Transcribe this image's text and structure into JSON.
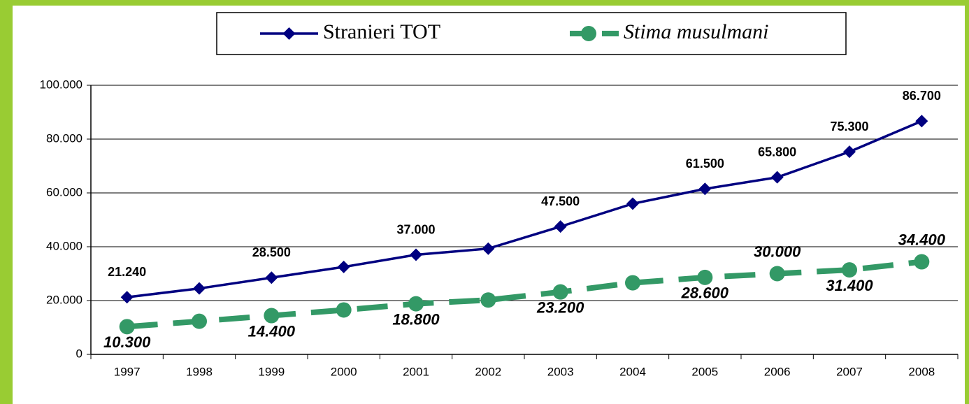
{
  "chart_data": {
    "type": "line",
    "categories": [
      "1997",
      "1998",
      "1999",
      "2000",
      "2001",
      "2002",
      "2003",
      "2004",
      "2005",
      "2006",
      "2007",
      "2008"
    ],
    "series": [
      {
        "name": "Stranieri TOT",
        "color": "#000080",
        "values": [
          21240,
          24500,
          28500,
          32500,
          37000,
          39300,
          47500,
          56000,
          61500,
          65800,
          75300,
          86700
        ],
        "value_labels": [
          "21.240",
          null,
          "28.500",
          null,
          "37.000",
          null,
          "47.500",
          null,
          "61.500",
          "65.800",
          "75.300",
          "86.700"
        ]
      },
      {
        "name": "Stima musulmani",
        "color": "#339966",
        "values": [
          10300,
          12300,
          14400,
          16500,
          18800,
          20200,
          23200,
          26600,
          28600,
          30000,
          31400,
          34400
        ],
        "value_labels": [
          "10.300",
          null,
          "14.400",
          null,
          "18.800",
          null,
          "23.200",
          null,
          "28.600",
          "30.000",
          "31.400",
          "34.400"
        ]
      }
    ],
    "ylim": [
      0,
      100000
    ],
    "yticks": [
      0,
      {
        "value": 20000,
        "label": "20.000"
      },
      {
        "value": 40000,
        "label": "40.000"
      },
      {
        "value": 60000,
        "label": "60.000"
      },
      {
        "value": 80000,
        "label": "80.000"
      },
      {
        "value": 100000,
        "label": "100.000"
      }
    ],
    "grid": true
  }
}
